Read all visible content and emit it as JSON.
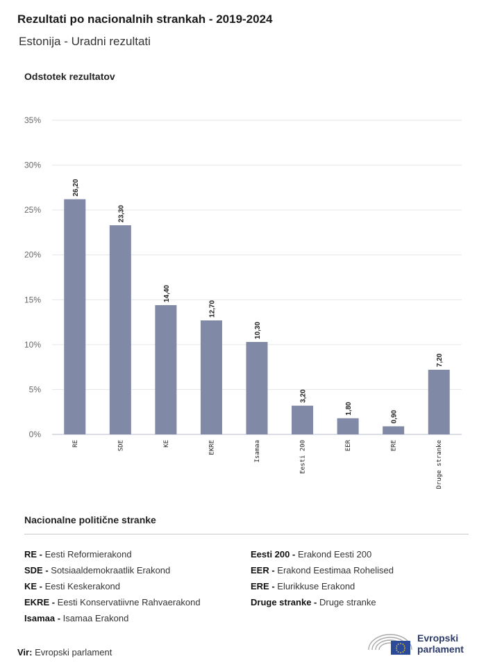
{
  "header": {
    "title": "Rezultati po nacionalnih strankah - 2019-2024",
    "subtitle": "Estonija - Uradni rezultati"
  },
  "chart_data": {
    "type": "bar",
    "ylabel": "Odstotek rezultatov",
    "categories": [
      "RE",
      "SDE",
      "KE",
      "EKRE",
      "Isamaa",
      "Eesti 200",
      "EER",
      "ERE",
      "Druge stranke"
    ],
    "values": [
      26.2,
      23.3,
      14.4,
      12.7,
      10.3,
      3.2,
      1.8,
      0.9,
      7.2
    ],
    "value_labels": [
      "26,20",
      "23,30",
      "14,40",
      "12,70",
      "10,30",
      "3,20",
      "1,80",
      "0,90",
      "7,20"
    ],
    "ylim": [
      0,
      35
    ],
    "yticks": [
      "0%",
      "5%",
      "10%",
      "15%",
      "20%",
      "25%",
      "30%",
      "35%"
    ],
    "grid": true,
    "bar_color": "#8089a5"
  },
  "legend": {
    "title": "Nacionalne politične stranke",
    "col1": [
      {
        "abbr": "RE -",
        "name": "Eesti Reformierakond"
      },
      {
        "abbr": "SDE -",
        "name": "Sotsiaaldemokraatlik Erakond"
      },
      {
        "abbr": "KE -",
        "name": "Eesti Keskerakond"
      },
      {
        "abbr": "EKRE -",
        "name": "Eesti Konservatiivne Rahvaerakond"
      },
      {
        "abbr": "Isamaa -",
        "name": "Isamaa Erakond"
      }
    ],
    "col2": [
      {
        "abbr": "Eesti 200 -",
        "name": "Erakond Eesti 200"
      },
      {
        "abbr": "EER -",
        "name": "Erakond Eestimaa Rohelised"
      },
      {
        "abbr": "ERE -",
        "name": "Elurikkuse Erakond"
      },
      {
        "abbr": "Druge stranke -",
        "name": "Druge stranke"
      }
    ]
  },
  "footer": {
    "source_label": "Vir:",
    "source_value": "Evropski parlament",
    "logo_line1": "Evropski",
    "logo_line2": "parlament"
  }
}
